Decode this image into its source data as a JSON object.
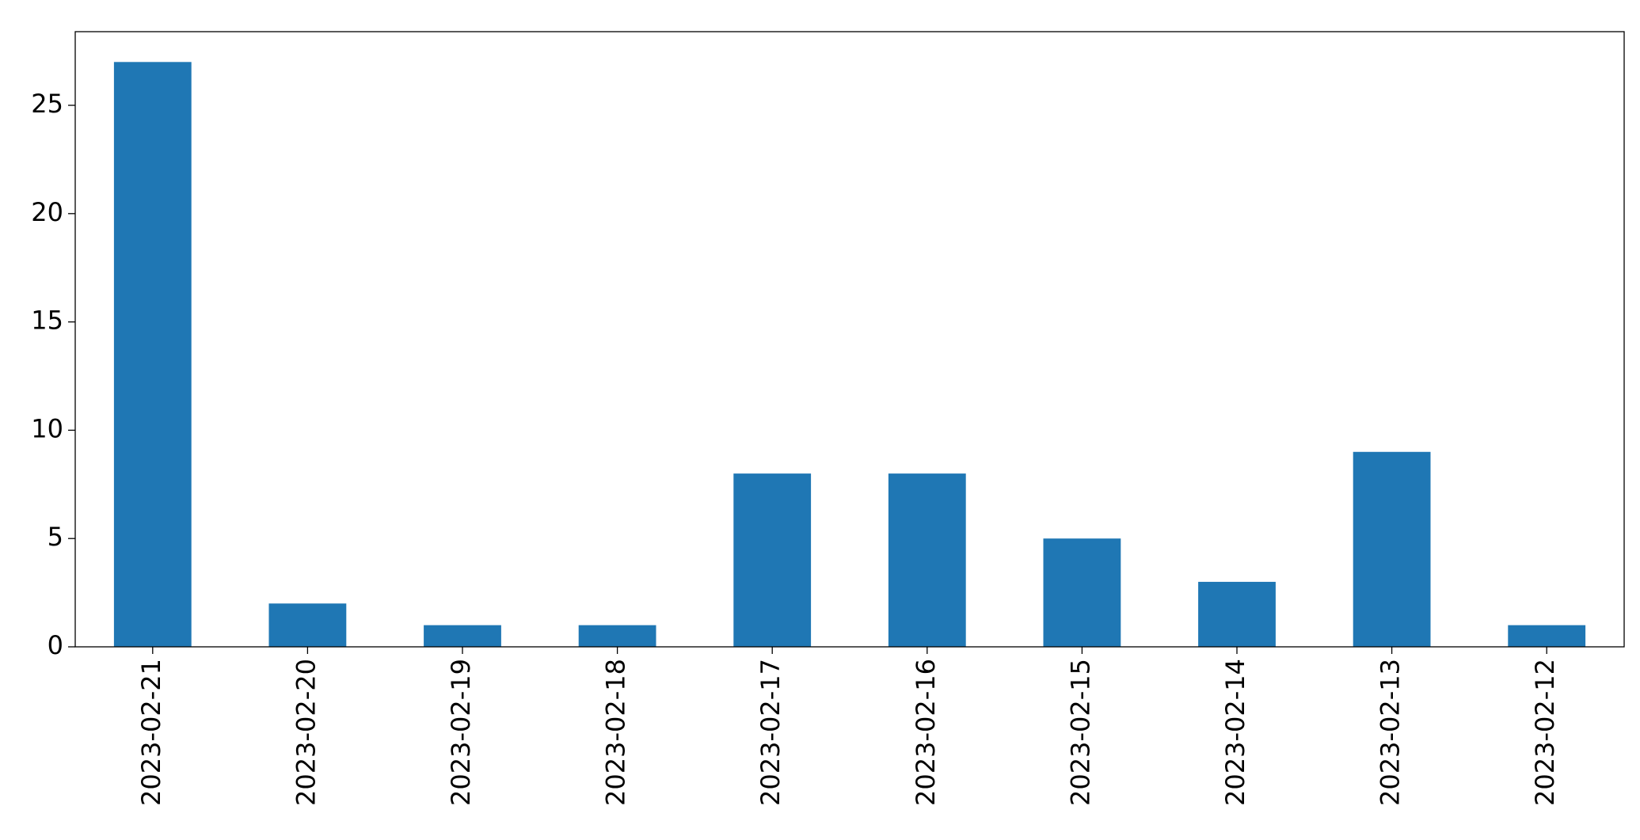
{
  "chart_data": {
    "type": "bar",
    "categories": [
      "2023-02-21",
      "2023-02-20",
      "2023-02-19",
      "2023-02-18",
      "2023-02-17",
      "2023-02-16",
      "2023-02-15",
      "2023-02-14",
      "2023-02-13",
      "2023-02-12"
    ],
    "values": [
      27,
      2,
      1,
      1,
      8,
      8,
      5,
      3,
      9,
      1
    ],
    "color": "#1f77b4",
    "ylim": [
      0,
      28.4
    ],
    "yticks": [
      0,
      5,
      10,
      15,
      20,
      25
    ],
    "grid": false
  }
}
